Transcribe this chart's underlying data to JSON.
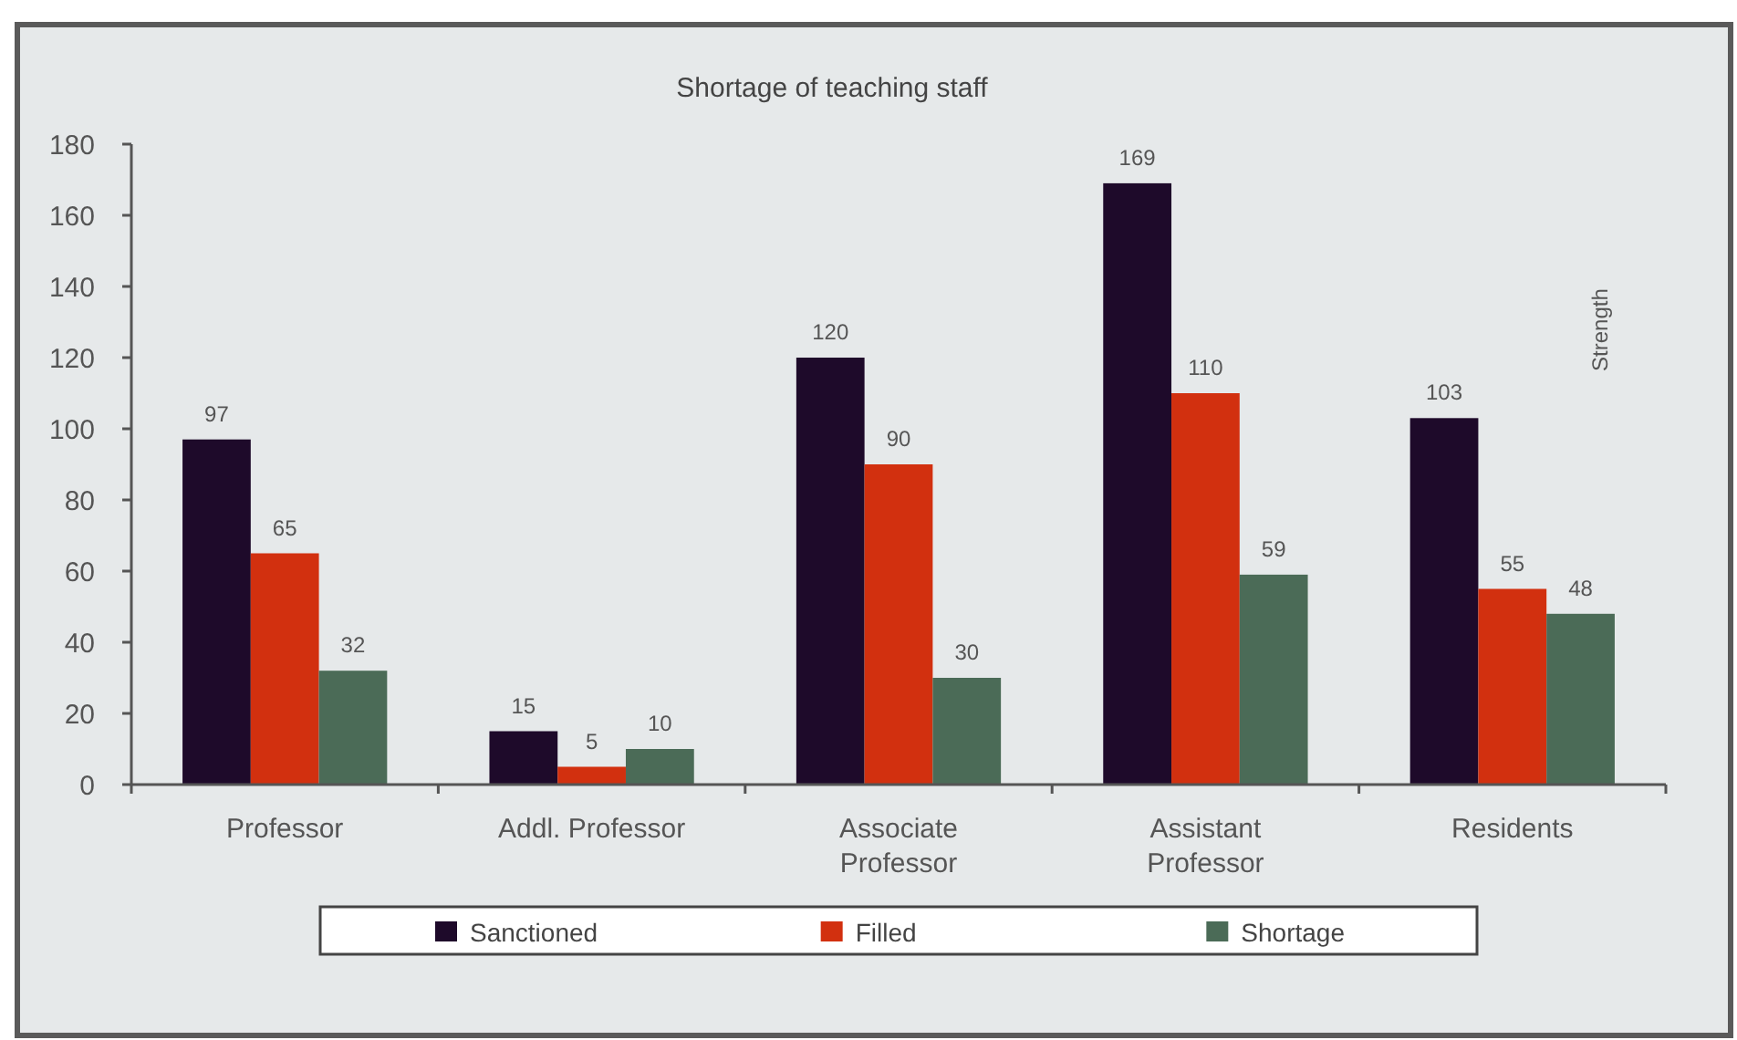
{
  "chart_data": {
    "type": "bar",
    "title": "Shortage of teaching staff",
    "ylabel": "Strength",
    "categories": [
      "Professor",
      "Addl. Professor",
      "Associate Professor",
      "Assistant Professor",
      "Residents"
    ],
    "series": [
      {
        "name": "Sanctioned",
        "color": "#1e0a2a",
        "values": [
          97,
          15,
          120,
          169,
          103
        ]
      },
      {
        "name": "Filled",
        "color": "#d2300f",
        "values": [
          65,
          5,
          90,
          110,
          55
        ]
      },
      {
        "name": "Shortage",
        "color": "#4b6b57",
        "values": [
          32,
          10,
          30,
          59,
          48
        ]
      }
    ],
    "ylim": [
      0,
      180
    ],
    "yticks": [
      0,
      20,
      40,
      60,
      80,
      100,
      120,
      140,
      160,
      180
    ],
    "legend": "bottom",
    "data_labels": true
  }
}
